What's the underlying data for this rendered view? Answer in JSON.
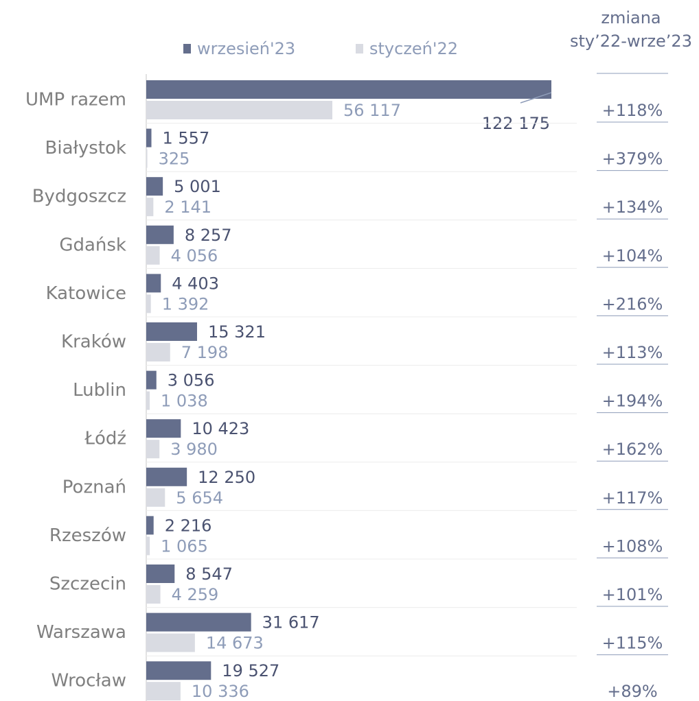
{
  "chart_data": {
    "type": "bar",
    "orientation": "horizontal",
    "categories": [
      "UMP razem",
      "Białystok",
      "Bydgoszcz",
      "Gdańsk",
      "Katowice",
      "Kraków",
      "Lublin",
      "Łódź",
      "Poznań",
      "Rzeszów",
      "Szczecin",
      "Warszawa",
      "Wrocław"
    ],
    "series": [
      {
        "name": "wrzesień'23",
        "color": "#646e8c",
        "label_color": "#4a5270",
        "values": [
          122175,
          1557,
          5001,
          8257,
          4403,
          15321,
          3056,
          10423,
          12250,
          2216,
          8547,
          31617,
          19527
        ],
        "value_labels": [
          "122 175",
          "1 557",
          "5 001",
          "8 257",
          "4 403",
          "15 321",
          "3 056",
          "10 423",
          "12 250",
          "2 216",
          "8 547",
          "31 617",
          "19 527"
        ]
      },
      {
        "name": "styczeń'22",
        "color": "#d9dbe2",
        "label_color": "#8e9cb8",
        "values": [
          56117,
          325,
          2141,
          4056,
          1392,
          7198,
          1038,
          3980,
          5654,
          1065,
          4259,
          14673,
          10336
        ],
        "value_labels": [
          "56 117",
          "325",
          "2 141",
          "4 056",
          "1 392",
          "7 198",
          "1 038",
          "3 980",
          "5 654",
          "1 065",
          "4 259",
          "14 673",
          "10 336"
        ]
      }
    ],
    "xlim": [
      0,
      122175
    ],
    "change_header": [
      "zmiana",
      "sty’22-wrze’23"
    ],
    "change_labels": [
      "+118%",
      "+379%",
      "+134%",
      "+104%",
      "+216%",
      "+113%",
      "+194%",
      "+162%",
      "+117%",
      "+108%",
      "+101%",
      "+115%",
      "+89%"
    ]
  }
}
